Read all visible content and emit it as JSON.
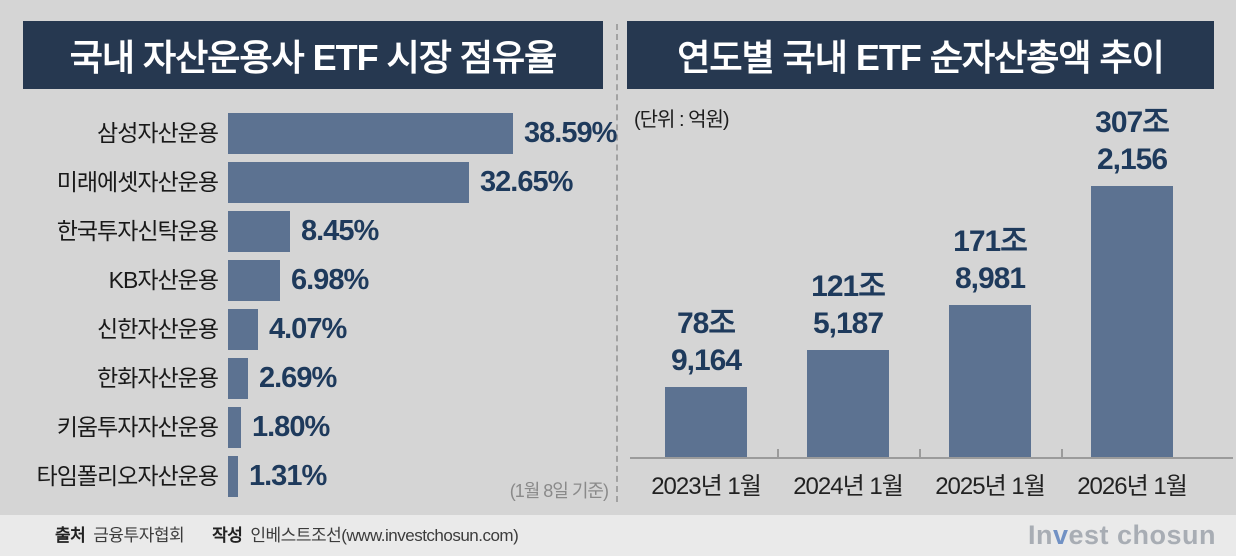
{
  "left_chart": {
    "title": "국내 자산운용사 ETF 시장 점유율",
    "note": "(1월 8일 기준)",
    "items": [
      {
        "label": "삼성자산운용",
        "value": 38.59,
        "display": "38.59%"
      },
      {
        "label": "미래에셋자산운용",
        "value": 32.65,
        "display": "32.65%"
      },
      {
        "label": "한국투자신탁운용",
        "value": 8.45,
        "display": "8.45%"
      },
      {
        "label": "KB자산운용",
        "value": 6.98,
        "display": "6.98%"
      },
      {
        "label": "신한자산운용",
        "value": 4.07,
        "display": "4.07%"
      },
      {
        "label": "한화자산운용",
        "value": 2.69,
        "display": "2.69%"
      },
      {
        "label": "키움투자자산운용",
        "value": 1.8,
        "display": "1.80%"
      },
      {
        "label": "타임폴리오자산운용",
        "value": 1.31,
        "display": "1.31%"
      }
    ]
  },
  "right_chart": {
    "title": "연도별 국내 ETF 순자산총액 추이",
    "unit": "(단위 : 억원)",
    "bars": [
      {
        "label": "2023년 1월",
        "value": 789164,
        "line1": "78조",
        "line2": "9,164"
      },
      {
        "label": "2024년 1월",
        "value": 1215187,
        "line1": "121조",
        "line2": "5,187"
      },
      {
        "label": "2025년 1월",
        "value": 1718981,
        "line1": "171조",
        "line2": "8,981"
      },
      {
        "label": "2026년 1월",
        "value": 3072156,
        "line1": "307조",
        "line2": "2,156"
      }
    ]
  },
  "footer": {
    "source_label": "출처",
    "source_value": "금융투자협회",
    "author_label": "작성",
    "author_value": "인베스트조선(www.investchosun.com)",
    "logo_part1": "In",
    "logo_v": "v",
    "logo_part2": "est chosun"
  },
  "colors": {
    "background": "#d5d5d5",
    "footer_background": "#eaeaea",
    "title_box": "#263850",
    "bar_fill": "#5c7291",
    "value_text": "#1e3a5c",
    "axis_gray": "#9b9b9b",
    "logo_gray": "#a8adb4",
    "logo_blue": "#7191c4"
  },
  "chart_data": [
    {
      "type": "bar",
      "orientation": "horizontal",
      "title": "국내 자산운용사 ETF 시장 점유율",
      "categories": [
        "삼성자산운용",
        "미래에셋자산운용",
        "한국투자신탁운용",
        "KB자산운용",
        "신한자산운용",
        "한화자산운용",
        "키움투자자산운용",
        "타임폴리오자산운용"
      ],
      "values": [
        38.59,
        32.65,
        8.45,
        6.98,
        4.07,
        2.69,
        1.8,
        1.31
      ],
      "unit": "%",
      "annotation": "(1월 8일 기준)",
      "xlim": [
        0,
        40
      ],
      "grid": false,
      "data_labels": [
        "38.59%",
        "32.65%",
        "8.45%",
        "6.98%",
        "4.07%",
        "2.69%",
        "1.80%",
        "1.31%"
      ]
    },
    {
      "type": "bar",
      "orientation": "vertical",
      "title": "연도별 국내 ETF 순자산총액 추이",
      "categories": [
        "2023년 1월",
        "2024년 1월",
        "2025년 1월",
        "2026년 1월"
      ],
      "values": [
        789164,
        1215187,
        1718981,
        3072156
      ],
      "unit": "억원",
      "unit_label": "(단위 : 억원)",
      "ylim": [
        0,
        3250000
      ],
      "grid": false,
      "data_labels": [
        "78조 9,164",
        "121조 5,187",
        "171조 8,981",
        "307조 2,156"
      ]
    }
  ]
}
